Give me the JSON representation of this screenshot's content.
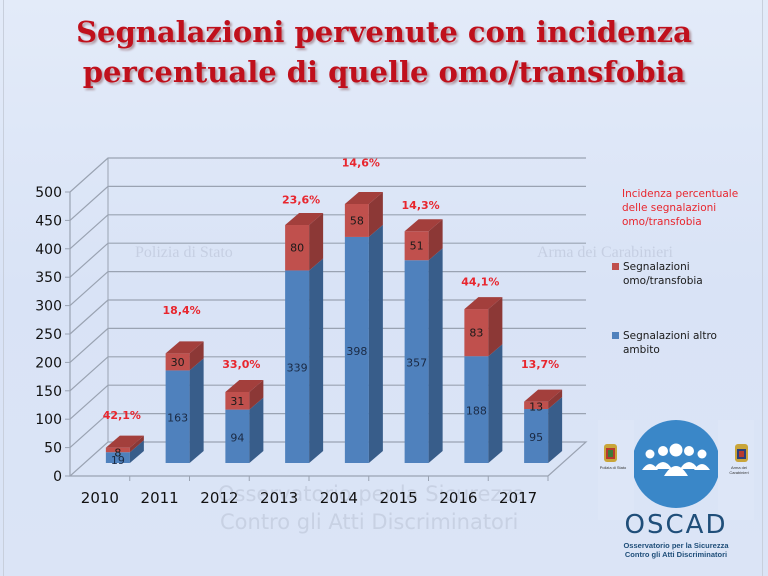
{
  "title": {
    "line1": "Segnalazioni pervenute con incidenza",
    "line2": "percentuale di quelle omo/transfobia"
  },
  "watermark": {
    "left_emblem": "Polizia di Stato",
    "right_emblem": "Arma dei Carabinieri",
    "line1": "Osservatorio per la Sicurezza",
    "line2": "Contro gli Atti Discriminatori"
  },
  "legend": {
    "incidence_label": "Incidenza percentuale delle segnalazioni omo/transfobia",
    "incidence_lines": [
      "Incidenza percentuale",
      "delle segnalazioni",
      "omo/transfobia"
    ],
    "series_red_lines": [
      "Segnalazioni",
      "omo/transfobia"
    ],
    "series_blue_lines": [
      "Segnalazioni altro",
      "ambito"
    ]
  },
  "logo": {
    "name": "OSCAD",
    "subtitle_line1": "Osservatorio per la Sicurezza",
    "subtitle_line2": "Contro gli Atti Discriminatori",
    "left_badge": "Polizia di Stato",
    "right_badge": "Arma dei Carabinieri"
  },
  "colors": {
    "title": "#c0101c",
    "blue_front": "#4f81bd",
    "blue_side": "#385d8a",
    "blue_top": "#5b8fd0",
    "red_front": "#c0504d",
    "red_side": "#8c3836",
    "red_top": "#a33f3c",
    "pct_label": "#e8262e",
    "logo_blue": "#3a87c8"
  },
  "chart_data": {
    "type": "bar",
    "stacked": true,
    "three_d": true,
    "title": "Segnalazioni pervenute con incidenza percentuale di quelle omo/transfobia",
    "xlabel": "",
    "ylabel": "",
    "ylim": [
      0,
      500
    ],
    "yticks": [
      0,
      50,
      100,
      150,
      200,
      250,
      300,
      350,
      400,
      450,
      500
    ],
    "grid": true,
    "legend_position": "right",
    "categories": [
      "2010",
      "2011",
      "2012",
      "2013",
      "2014",
      "2015",
      "2016",
      "2017"
    ],
    "series": [
      {
        "name": "Segnalazioni altro ambito",
        "color": "#4f81bd",
        "values": [
          19,
          163,
          94,
          339,
          398,
          357,
          188,
          95
        ]
      },
      {
        "name": "Segnalazioni omo/transfobia",
        "color": "#c0504d",
        "values": [
          8,
          30,
          31,
          80,
          58,
          51,
          83,
          13
        ]
      }
    ],
    "percent_labels": [
      "42,1%",
      "18,4%",
      "33,0%",
      "23,6%",
      "14,6%",
      "14,3%",
      "44,1%",
      "13,7%"
    ],
    "percent_label_heights": [
      100,
      285,
      190,
      480,
      545,
      470,
      335,
      190
    ]
  }
}
